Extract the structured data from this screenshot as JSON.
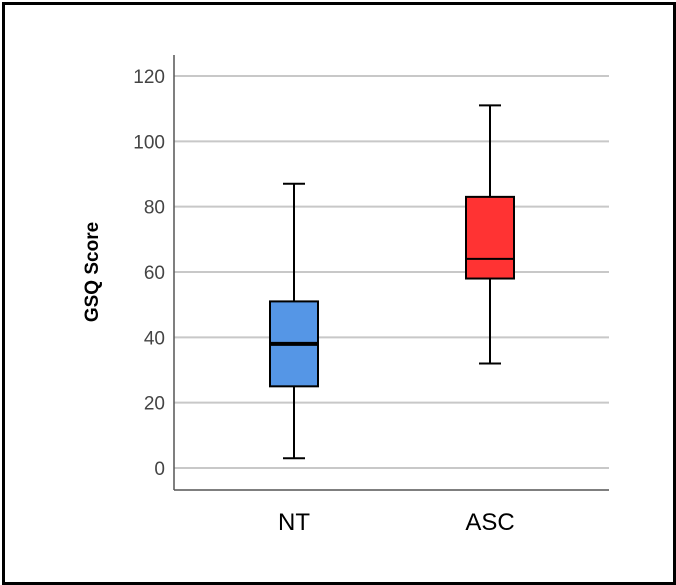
{
  "chart_data": {
    "type": "boxplot",
    "title": "",
    "xlabel": "",
    "ylabel": "GSQ Score",
    "ylim": [
      0,
      120
    ],
    "yticks": [
      "0",
      "20",
      "40",
      "60",
      "80",
      "100",
      "120"
    ],
    "grid": true,
    "legend": "none",
    "categories": [
      "NT",
      "ASC"
    ],
    "boxes": [
      {
        "category": "NT",
        "min": 3,
        "q1": 25,
        "median": 38,
        "q3": 51,
        "max": 87,
        "color": "#5596e6"
      },
      {
        "category": "ASC",
        "min": 32,
        "q1": 58,
        "median": 64,
        "q3": 83,
        "max": 111,
        "color": "#ff3333"
      }
    ]
  },
  "colors": {
    "grid": "#c8c8c8",
    "axis": "#555555",
    "frame": "#000000"
  }
}
